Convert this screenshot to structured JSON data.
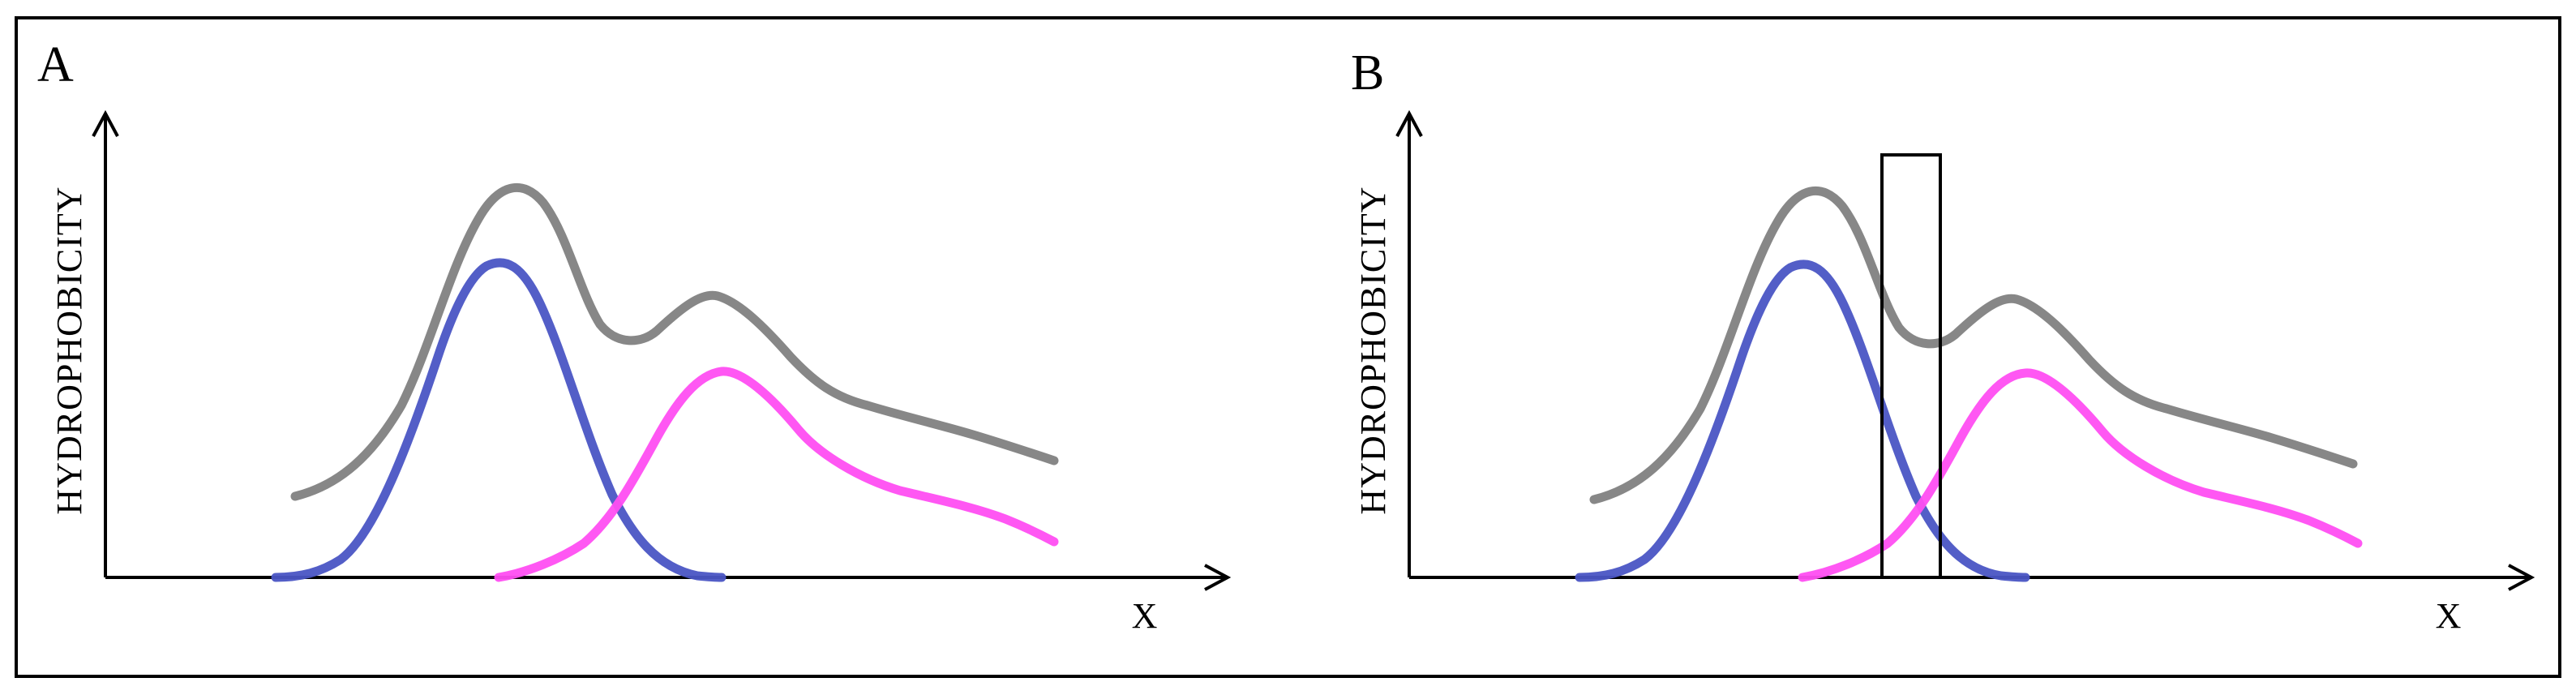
{
  "panels": [
    {
      "letter": "A",
      "y_axis_label": "HYDROPHOBICITY",
      "x_axis_label": "X",
      "has_window_box": false
    },
    {
      "letter": "B",
      "y_axis_label": "HYDROPHOBICITY",
      "x_axis_label": "X",
      "has_window_box": true
    }
  ],
  "colors": {
    "frame": "#000000",
    "combined_curve": "#7a7a7a",
    "component_1": "#4a55c4",
    "component_2": "#ff4ef2",
    "window_box": "#000000"
  },
  "legend": null
}
